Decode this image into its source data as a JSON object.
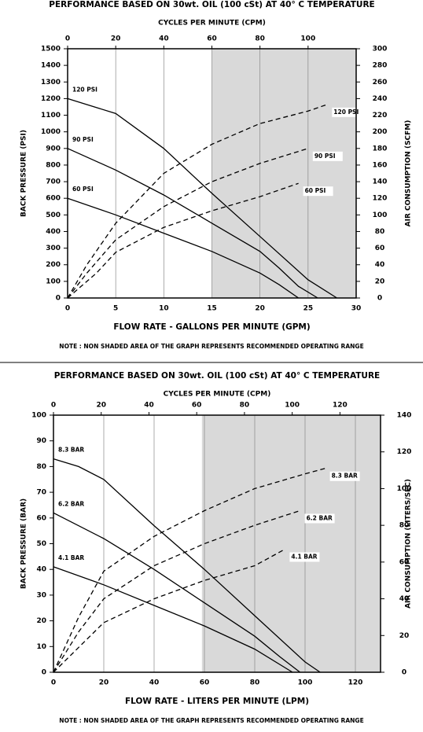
{
  "chart_data": [
    {
      "type": "line",
      "title": "PERFORMANCE  BASED ON 30wt. OIL (100 cSt) AT 40° C TEMPERATURE",
      "x2_label": "CYCLES PER MINUTE (CPM)",
      "xlabel": "FLOW RATE - GALLONS PER MINUTE (GPM)",
      "ylabel": "BACK PRESSURE (PSI)",
      "y2label": "AIR CONSUMPTION  (SCFM)",
      "note": "NOTE : NON SHADED AREA OF THE GRAPH REPRESENTS RECOMMENDED OPERATING RANGE",
      "xlim": [
        0,
        30
      ],
      "xticks": [
        0,
        5,
        10,
        15,
        20,
        25,
        30
      ],
      "x2lim": [
        0,
        120
      ],
      "x2ticks": [
        0,
        20,
        40,
        60,
        80,
        100
      ],
      "ylim": [
        0,
        1500
      ],
      "yticks": [
        0,
        100,
        200,
        300,
        400,
        500,
        600,
        700,
        800,
        900,
        1000,
        1100,
        1200,
        1300,
        1400,
        1500
      ],
      "y2lim": [
        0,
        300
      ],
      "y2ticks": [
        0,
        20,
        40,
        60,
        80,
        100,
        120,
        140,
        160,
        180,
        200,
        220,
        240,
        260,
        280,
        300
      ],
      "grid": "x",
      "shade_from": 15,
      "shade_color": "#d9d9d9",
      "series": [
        {
          "name": "120 PSI",
          "color": "#000000",
          "x": [
            0,
            5,
            10,
            15,
            20,
            25,
            28
          ],
          "values": [
            1200,
            1110,
            900,
            630,
            370,
            110,
            0
          ]
        },
        {
          "name": "90 PSI",
          "color": "#000000",
          "x": [
            0,
            5,
            10,
            15,
            20,
            22,
            24,
            26
          ],
          "values": [
            900,
            770,
            620,
            450,
            280,
            180,
            70,
            0
          ]
        },
        {
          "name": "60 PSI",
          "color": "#000000",
          "x": [
            0,
            5,
            10,
            15,
            20,
            22,
            24
          ],
          "values": [
            600,
            500,
            390,
            280,
            150,
            80,
            0
          ]
        },
        {
          "name": "120 PSI",
          "color": "#000000",
          "axis": "y2",
          "dashed": true,
          "x": [
            0,
            2,
            5,
            10,
            15,
            20,
            25,
            27
          ],
          "values": [
            0,
            40,
            90,
            150,
            185,
            210,
            225,
            233
          ]
        },
        {
          "name": "90 PSI",
          "color": "#000000",
          "axis": "y2",
          "dashed": true,
          "x": [
            0,
            2,
            5,
            10,
            15,
            20,
            25
          ],
          "values": [
            0,
            30,
            70,
            110,
            140,
            162,
            180
          ]
        },
        {
          "name": "60 PSI",
          "color": "#000000",
          "axis": "y2",
          "dashed": true,
          "x": [
            0,
            3,
            5,
            10,
            15,
            20,
            24
          ],
          "values": [
            0,
            30,
            55,
            85,
            105,
            122,
            138
          ]
        }
      ]
    },
    {
      "type": "line",
      "title": "PERFORMANCE  BASED ON 30wt. OIL (100 cSt) AT 40° C TEMPERATURE",
      "x2_label": "CYCLES PER MINUTE (CPM)",
      "xlabel": "FLOW RATE - LITERS PER MINUTE (LPM)",
      "ylabel": "BACK PRESSURE  (BAR)",
      "y2label": "AIR CONSUMPTION  (LITERS/SEC)",
      "note": "NOTE : NON SHADED AREA OF THE GRAPH REPRESENTS RECOMMENDED OPERATING RANGE",
      "xlim": [
        0,
        130
      ],
      "xticks": [
        0,
        20,
        40,
        60,
        80,
        100,
        120
      ],
      "x2lim": [
        0,
        137
      ],
      "x2ticks": [
        0,
        20,
        40,
        60,
        80,
        100,
        120
      ],
      "ylim": [
        0,
        100
      ],
      "yticks": [
        0,
        10,
        20,
        30,
        40,
        50,
        60,
        70,
        80,
        90,
        100
      ],
      "y2lim": [
        0,
        140
      ],
      "y2ticks": [
        0,
        20,
        40,
        60,
        80,
        100,
        120,
        140
      ],
      "grid": "x",
      "shade_from": 59,
      "shade_color": "#d9d9d9",
      "series": [
        {
          "name": "8.3 BAR",
          "color": "#000000",
          "x": [
            0,
            10,
            20,
            40,
            60,
            80,
            100,
            106
          ],
          "values": [
            83,
            80,
            75,
            57,
            40,
            22,
            4,
            0
          ]
        },
        {
          "name": "6.2 BAR",
          "color": "#000000",
          "x": [
            0,
            20,
            40,
            60,
            80,
            90,
            98
          ],
          "values": [
            62,
            52,
            40,
            27,
            14,
            6,
            0
          ]
        },
        {
          "name": "4.1 BAR",
          "color": "#000000",
          "x": [
            0,
            20,
            40,
            60,
            80,
            95
          ],
          "values": [
            41,
            34,
            26,
            18,
            9,
            0
          ]
        },
        {
          "name": "8.3 BAR",
          "color": "#000000",
          "axis": "y2",
          "dashed": true,
          "x": [
            0,
            10,
            20,
            40,
            60,
            80,
            100,
            108
          ],
          "values": [
            0,
            30,
            55,
            74,
            88,
            100,
            108,
            111
          ]
        },
        {
          "name": "6.2 BAR",
          "color": "#000000",
          "axis": "y2",
          "dashed": true,
          "x": [
            0,
            10,
            20,
            40,
            60,
            80,
            98
          ],
          "values": [
            0,
            22,
            40,
            58,
            70,
            80,
            88
          ]
        },
        {
          "name": "4.1 BAR",
          "color": "#000000",
          "axis": "y2",
          "dashed": true,
          "x": [
            0,
            20,
            40,
            60,
            80,
            92
          ],
          "values": [
            0,
            27,
            40,
            50,
            58,
            67
          ]
        }
      ]
    }
  ]
}
